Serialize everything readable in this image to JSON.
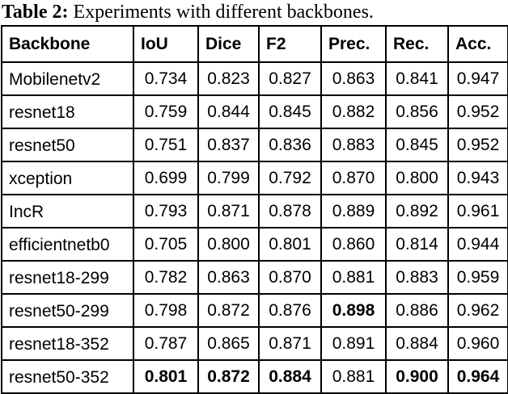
{
  "caption": {
    "label": "Table 2:",
    "text": "Experiments with different backbones."
  },
  "table": {
    "columns": [
      "Backbone",
      "IoU",
      "Dice",
      "F2",
      "Prec.",
      "Rec.",
      "Acc."
    ],
    "rows": [
      {
        "backbone": "Mobilenetv2",
        "values": [
          "0.734",
          "0.823",
          "0.827",
          "0.863",
          "0.841",
          "0.947"
        ],
        "bold": [
          false,
          false,
          false,
          false,
          false,
          false
        ]
      },
      {
        "backbone": "resnet18",
        "values": [
          "0.759",
          "0.844",
          "0.845",
          "0.882",
          "0.856",
          "0.952"
        ],
        "bold": [
          false,
          false,
          false,
          false,
          false,
          false
        ]
      },
      {
        "backbone": "resnet50",
        "values": [
          "0.751",
          "0.837",
          "0.836",
          "0.883",
          "0.845",
          "0.952"
        ],
        "bold": [
          false,
          false,
          false,
          false,
          false,
          false
        ]
      },
      {
        "backbone": "xception",
        "values": [
          "0.699",
          "0.799",
          "0.792",
          "0.870",
          "0.800",
          "0.943"
        ],
        "bold": [
          false,
          false,
          false,
          false,
          false,
          false
        ]
      },
      {
        "backbone": "IncR",
        "values": [
          "0.793",
          "0.871",
          "0.878",
          "0.889",
          "0.892",
          "0.961"
        ],
        "bold": [
          false,
          false,
          false,
          false,
          false,
          false
        ]
      },
      {
        "backbone": "efficientnetb0",
        "values": [
          "0.705",
          "0.800",
          "0.801",
          "0.860",
          "0.814",
          "0.944"
        ],
        "bold": [
          false,
          false,
          false,
          false,
          false,
          false
        ]
      },
      {
        "backbone": "resnet18-299",
        "values": [
          "0.782",
          "0.863",
          "0.870",
          "0.881",
          "0.883",
          "0.959"
        ],
        "bold": [
          false,
          false,
          false,
          false,
          false,
          false
        ]
      },
      {
        "backbone": "resnet50-299",
        "values": [
          "0.798",
          "0.872",
          "0.876",
          "0.898",
          "0.886",
          "0.962"
        ],
        "bold": [
          false,
          false,
          false,
          true,
          false,
          false
        ]
      },
      {
        "backbone": "resnet18-352",
        "values": [
          "0.787",
          "0.865",
          "0.871",
          "0.891",
          "0.884",
          "0.960"
        ],
        "bold": [
          false,
          false,
          false,
          false,
          false,
          false
        ]
      },
      {
        "backbone": "resnet50-352",
        "values": [
          "0.801",
          "0.872",
          "0.884",
          "0.881",
          "0.900",
          "0.964"
        ],
        "bold": [
          true,
          true,
          true,
          false,
          true,
          true
        ]
      }
    ]
  }
}
